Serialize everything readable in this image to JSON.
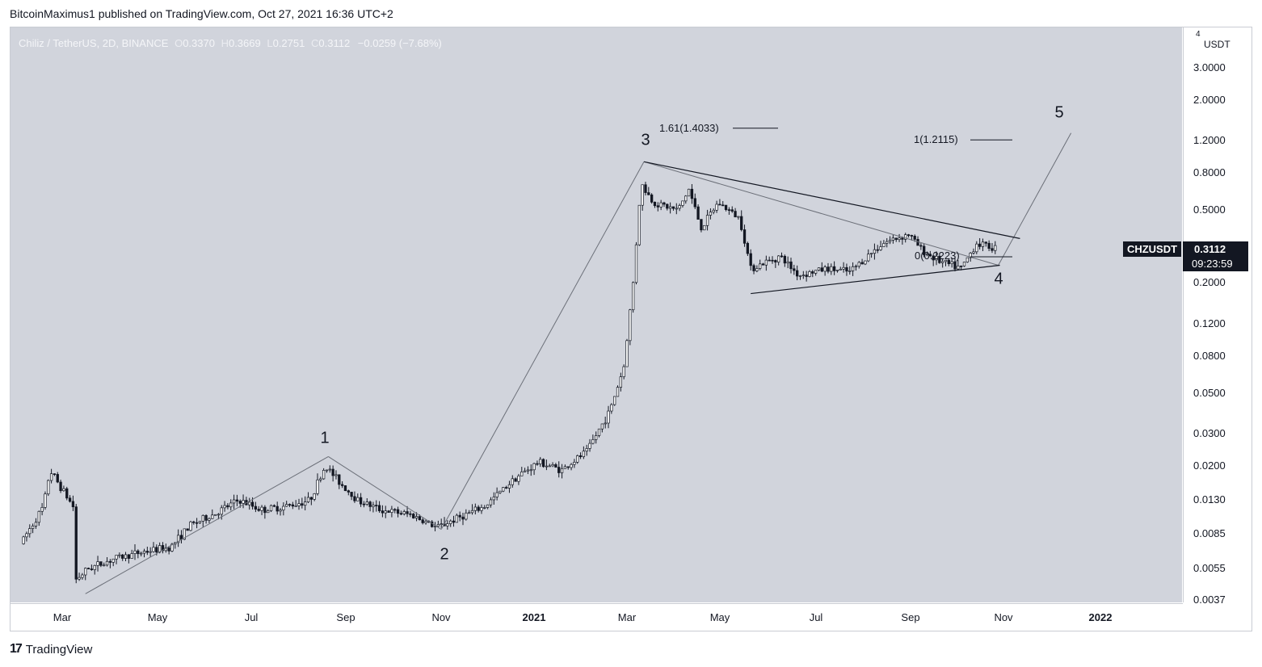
{
  "publisher_line": "BitcoinMaximus1 published on TradingView.com, Oct 27, 2021 16:36 UTC+2",
  "legend": {
    "symbol": "Chiliz / TetherUS, 2D, BINANCE",
    "open_key": "O",
    "open": "0.3370",
    "high_key": "H",
    "high": "0.3669",
    "low_key": "L",
    "low": "0.2751",
    "close_key": "C",
    "close": "0.3112",
    "change": "−0.0259 (−7.68%)"
  },
  "axis_unit_top": "4",
  "axis_unit": "USDT",
  "symbol_tag": "CHZUSDT",
  "last_price": "0.3112",
  "countdown": "09:23:59",
  "footer_brand": "TradingView",
  "footer_icon": "tradingview-logo-icon",
  "colors": {
    "background": "#d1d4dc",
    "candles": "#131722",
    "lines": "#131722",
    "projection": "#6b6f78"
  },
  "annotations": {
    "waves": [
      "1",
      "2",
      "3",
      "4",
      "5"
    ],
    "fib_161": "1.61(1.4033)",
    "fib_1": "1(1.2115)",
    "fib_0": "0(0.2223)"
  },
  "chart_data": {
    "type": "candlestick",
    "scale": "log",
    "price_ticks": [
      "0.0037",
      "0.0055",
      "0.0085",
      "0.0130",
      "0.0200",
      "0.0300",
      "0.0500",
      "0.0800",
      "0.1200",
      "0.2000",
      "0.5000",
      "0.8000",
      "1.2000",
      "2.0000",
      "3.0000"
    ],
    "time_ticks": [
      {
        "label": "Mar",
        "bold": false
      },
      {
        "label": "May",
        "bold": false
      },
      {
        "label": "Jul",
        "bold": false
      },
      {
        "label": "Sep",
        "bold": false
      },
      {
        "label": "Nov",
        "bold": false
      },
      {
        "label": "2021",
        "bold": true
      },
      {
        "label": "Mar",
        "bold": false
      },
      {
        "label": "May",
        "bold": false
      },
      {
        "label": "Jul",
        "bold": false
      },
      {
        "label": "Sep",
        "bold": false
      },
      {
        "label": "Nov",
        "bold": false
      },
      {
        "label": "2022",
        "bold": true
      }
    ],
    "price_path": [
      [
        "2020-02-05",
        0.0075
      ],
      [
        "2020-02-20",
        0.012
      ],
      [
        "2020-02-24",
        0.019
      ],
      [
        "2020-03-05",
        0.014
      ],
      [
        "2020-03-10",
        0.012
      ],
      [
        "2020-03-12",
        0.0048
      ],
      [
        "2020-03-20",
        0.0055
      ],
      [
        "2020-04-05",
        0.0062
      ],
      [
        "2020-04-25",
        0.0068
      ],
      [
        "2020-05-12",
        0.0072
      ],
      [
        "2020-05-25",
        0.0095
      ],
      [
        "2020-06-10",
        0.011
      ],
      [
        "2020-06-25",
        0.013
      ],
      [
        "2020-07-10",
        0.0115
      ],
      [
        "2020-07-25",
        0.012
      ],
      [
        "2020-08-10",
        0.013
      ],
      [
        "2020-08-20",
        0.02
      ],
      [
        "2020-08-30",
        0.016
      ],
      [
        "2020-09-10",
        0.013
      ],
      [
        "2020-09-25",
        0.0115
      ],
      [
        "2020-10-15",
        0.0108
      ],
      [
        "2020-10-31",
        0.0092
      ],
      [
        "2020-11-15",
        0.0105
      ],
      [
        "2020-12-01",
        0.012
      ],
      [
        "2020-12-20",
        0.017
      ],
      [
        "2021-01-05",
        0.021
      ],
      [
        "2021-01-20",
        0.019
      ],
      [
        "2021-02-05",
        0.024
      ],
      [
        "2021-02-20",
        0.04
      ],
      [
        "2021-03-01",
        0.07
      ],
      [
        "2021-03-07",
        0.2
      ],
      [
        "2021-03-12",
        0.7
      ],
      [
        "2021-03-20",
        0.55
      ],
      [
        "2021-04-05",
        0.5
      ],
      [
        "2021-04-12",
        0.65
      ],
      [
        "2021-04-20",
        0.4
      ],
      [
        "2021-05-01",
        0.55
      ],
      [
        "2021-05-15",
        0.45
      ],
      [
        "2021-05-22",
        0.24
      ],
      [
        "2021-06-10",
        0.28
      ],
      [
        "2021-06-22",
        0.22
      ],
      [
        "2021-07-10",
        0.24
      ],
      [
        "2021-07-25",
        0.23
      ],
      [
        "2021-08-15",
        0.33
      ],
      [
        "2021-09-01",
        0.37
      ],
      [
        "2021-09-10",
        0.3
      ],
      [
        "2021-09-22",
        0.26
      ],
      [
        "2021-10-05",
        0.24
      ],
      [
        "2021-10-15",
        0.33
      ],
      [
        "2021-10-26",
        0.3112
      ]
    ],
    "wave_points": [
      {
        "label": "1",
        "date": "2020-08-20",
        "price": 0.0225
      },
      {
        "label": "2",
        "date": "2020-11-01",
        "price": 0.009
      },
      {
        "label": "3",
        "date": "2021-03-12",
        "price": 0.92
      },
      {
        "label": "4",
        "date": "2021-10-27",
        "price": 0.25
      },
      {
        "label": "5",
        "date": "2021-12-13",
        "price": 1.32
      }
    ],
    "triangle": {
      "upper": [
        [
          "2021-03-12",
          0.92
        ],
        [
          "2021-11-10",
          0.35
        ]
      ],
      "lower": [
        [
          "2021-05-20",
          0.175
        ],
        [
          "2021-10-28",
          0.25
        ]
      ]
    },
    "fib_levels": [
      {
        "label": "1.61(1.4033)",
        "price": 1.4033
      },
      {
        "label": "1(1.2115)",
        "price": 1.2115
      },
      {
        "label": "0(0.2223)",
        "price": 0.2223
      }
    ]
  }
}
